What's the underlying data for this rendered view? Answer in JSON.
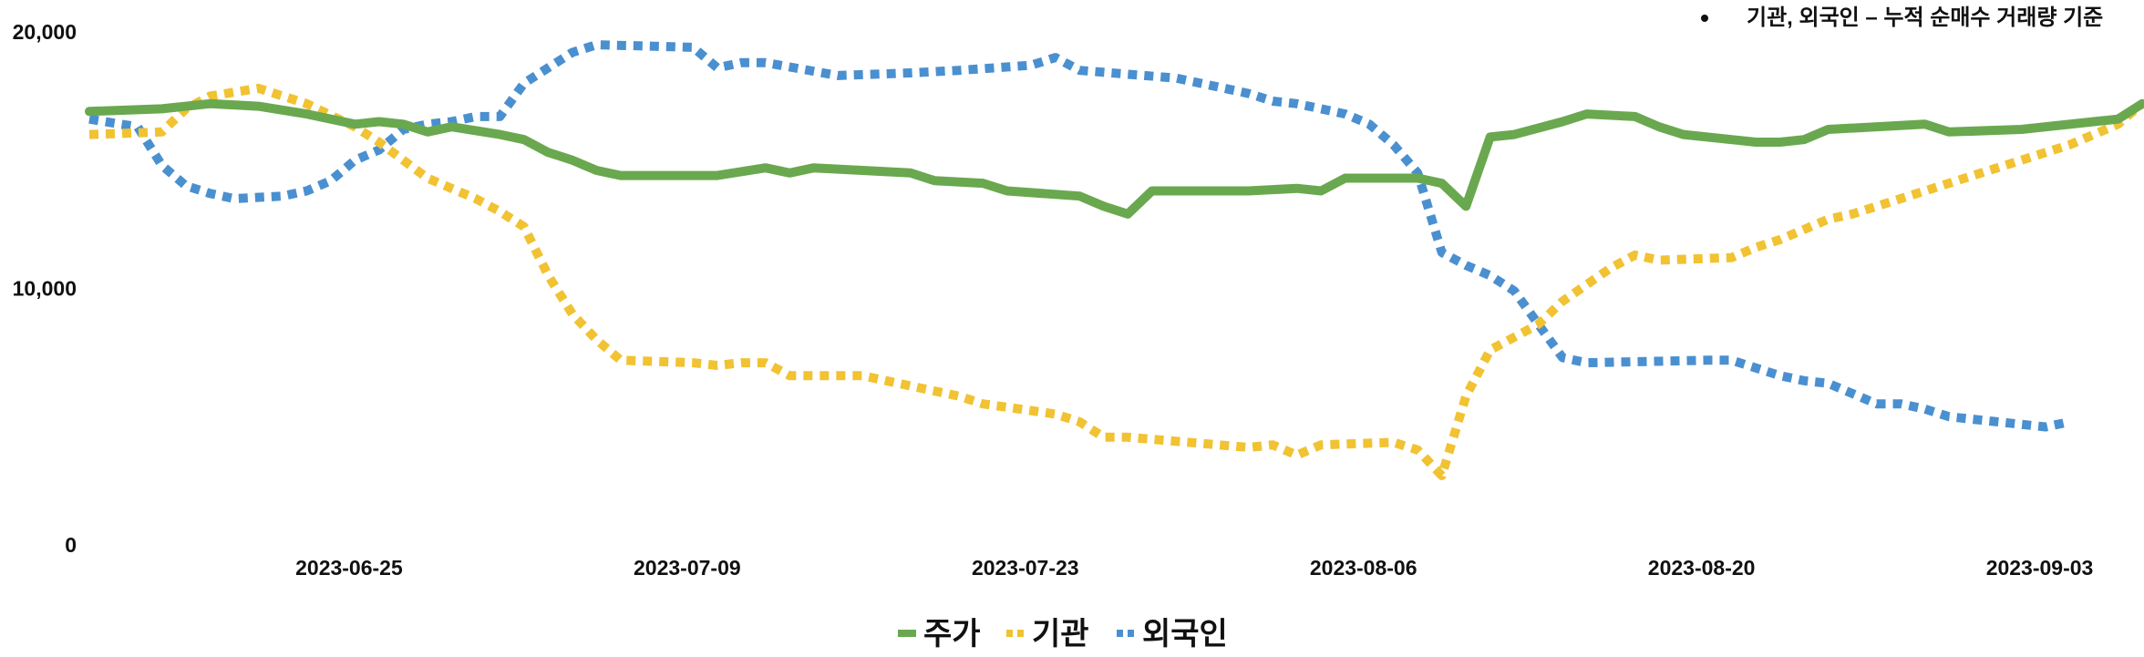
{
  "chart_data": {
    "type": "line",
    "note": "기관, 외국인 – 누적 순매수 거래량 기준",
    "ylim": [
      0,
      20000
    ],
    "y_ticks": [
      "0",
      "10,000",
      "20,000"
    ],
    "x_ticks": [
      "2023-06-25",
      "2023-07-09",
      "2023-07-23",
      "2023-08-06",
      "2023-08-20",
      "2023-09-03"
    ],
    "legend_position": "bottom",
    "series": [
      {
        "name": "주가",
        "color": "#6aa84f",
        "style": "solid",
        "values": [
          [
            0,
            16900
          ],
          [
            3,
            17000
          ],
          [
            5,
            17200
          ],
          [
            7,
            17100
          ],
          [
            9,
            16800
          ],
          [
            11,
            16400
          ],
          [
            12,
            16500
          ],
          [
            13,
            16400
          ],
          [
            14,
            16100
          ],
          [
            15,
            16300
          ],
          [
            17,
            16000
          ],
          [
            18,
            15800
          ],
          [
            19,
            15300
          ],
          [
            20,
            15000
          ],
          [
            21,
            14600
          ],
          [
            22,
            14400
          ],
          [
            26,
            14400
          ],
          [
            28,
            14700
          ],
          [
            29,
            14500
          ],
          [
            30,
            14700
          ],
          [
            34,
            14500
          ],
          [
            35,
            14200
          ],
          [
            37,
            14100
          ],
          [
            38,
            13800
          ],
          [
            41,
            13600
          ],
          [
            42,
            13200
          ],
          [
            43,
            12900
          ],
          [
            44,
            13800
          ],
          [
            48,
            13800
          ],
          [
            50,
            13900
          ],
          [
            51,
            13800
          ],
          [
            52,
            14300
          ],
          [
            55,
            14300
          ],
          [
            56,
            14100
          ],
          [
            57,
            13200
          ],
          [
            58,
            15900
          ],
          [
            59,
            16000
          ],
          [
            61,
            16500
          ],
          [
            62,
            16800
          ],
          [
            64,
            16700
          ],
          [
            65,
            16300
          ],
          [
            66,
            16000
          ],
          [
            69,
            15700
          ],
          [
            70,
            15700
          ],
          [
            71,
            15800
          ],
          [
            72,
            16200
          ],
          [
            76,
            16400
          ],
          [
            77,
            16100
          ],
          [
            80,
            16200
          ],
          [
            83,
            16500
          ],
          [
            84,
            16600
          ],
          [
            85,
            17200
          ]
        ]
      },
      {
        "name": "기관",
        "color": "#f1c232",
        "style": "dotted",
        "values": [
          [
            0,
            16000
          ],
          [
            3,
            16100
          ],
          [
            4,
            17000
          ],
          [
            5,
            17500
          ],
          [
            7,
            17800
          ],
          [
            9,
            17200
          ],
          [
            11,
            16300
          ],
          [
            12,
            15700
          ],
          [
            13,
            15000
          ],
          [
            14,
            14300
          ],
          [
            16,
            13500
          ],
          [
            17,
            13000
          ],
          [
            18,
            12400
          ],
          [
            19,
            10500
          ],
          [
            20,
            9000
          ],
          [
            21,
            8000
          ],
          [
            22,
            7200
          ],
          [
            25,
            7100
          ],
          [
            26,
            7000
          ],
          [
            27,
            7100
          ],
          [
            28,
            7100
          ],
          [
            29,
            6600
          ],
          [
            32,
            6600
          ],
          [
            33,
            6400
          ],
          [
            34,
            6200
          ],
          [
            35,
            6000
          ],
          [
            36,
            5800
          ],
          [
            37,
            5500
          ],
          [
            40,
            5100
          ],
          [
            41,
            4800
          ],
          [
            42,
            4200
          ],
          [
            43,
            4200
          ],
          [
            48,
            3800
          ],
          [
            49,
            3900
          ],
          [
            50,
            3500
          ],
          [
            51,
            3900
          ],
          [
            54,
            4000
          ],
          [
            55,
            3700
          ],
          [
            56,
            2700
          ],
          [
            57,
            5800
          ],
          [
            58,
            7600
          ],
          [
            60,
            8600
          ],
          [
            61,
            9500
          ],
          [
            63,
            10800
          ],
          [
            64,
            11300
          ],
          [
            65,
            11100
          ],
          [
            68,
            11200
          ],
          [
            69,
            11600
          ],
          [
            70,
            11900
          ],
          [
            71,
            12300
          ],
          [
            72,
            12700
          ],
          [
            73,
            12900
          ],
          [
            74,
            13200
          ],
          [
            75,
            13500
          ],
          [
            76,
            13800
          ],
          [
            77,
            14100
          ],
          [
            78,
            14400
          ],
          [
            79,
            14700
          ],
          [
            80,
            15000
          ],
          [
            81,
            15300
          ],
          [
            82,
            15600
          ],
          [
            83,
            16000
          ],
          [
            84,
            16400
          ],
          [
            85,
            17200
          ]
        ]
      },
      {
        "name": "외국인",
        "color": "#4a90d0",
        "style": "dotted",
        "values": [
          [
            0,
            16600
          ],
          [
            2,
            16300
          ],
          [
            3,
            14800
          ],
          [
            4,
            14000
          ],
          [
            5,
            13700
          ],
          [
            6,
            13500
          ],
          [
            8,
            13600
          ],
          [
            9,
            13800
          ],
          [
            10,
            14200
          ],
          [
            11,
            15000
          ],
          [
            12,
            15400
          ],
          [
            13,
            16200
          ],
          [
            14,
            16400
          ],
          [
            15,
            16500
          ],
          [
            16,
            16700
          ],
          [
            17,
            16700
          ],
          [
            18,
            18000
          ],
          [
            19,
            18600
          ],
          [
            20,
            19200
          ],
          [
            21,
            19500
          ],
          [
            25,
            19400
          ],
          [
            26,
            18600
          ],
          [
            27,
            18800
          ],
          [
            28,
            18800
          ],
          [
            31,
            18300
          ],
          [
            34,
            18400
          ],
          [
            36,
            18500
          ],
          [
            39,
            18700
          ],
          [
            40,
            19000
          ],
          [
            41,
            18500
          ],
          [
            45,
            18200
          ],
          [
            46,
            18000
          ],
          [
            47,
            17800
          ],
          [
            48,
            17600
          ],
          [
            49,
            17300
          ],
          [
            50,
            17200
          ],
          [
            51,
            17000
          ],
          [
            52,
            16800
          ],
          [
            53,
            16400
          ],
          [
            54,
            15600
          ],
          [
            55,
            14500
          ],
          [
            56,
            11400
          ],
          [
            57,
            10900
          ],
          [
            58,
            10500
          ],
          [
            59,
            9900
          ],
          [
            60,
            8600
          ],
          [
            61,
            7300
          ],
          [
            62,
            7100
          ],
          [
            67,
            7200
          ],
          [
            68,
            7200
          ],
          [
            69,
            6900
          ],
          [
            70,
            6600
          ],
          [
            71,
            6400
          ],
          [
            72,
            6300
          ],
          [
            73,
            5900
          ],
          [
            74,
            5500
          ],
          [
            75,
            5500
          ],
          [
            76,
            5300
          ],
          [
            77,
            5000
          ],
          [
            78,
            4900
          ],
          [
            79,
            4800
          ],
          [
            80,
            4700
          ],
          [
            81,
            4600
          ],
          [
            82,
            4800
          ]
        ]
      }
    ]
  }
}
